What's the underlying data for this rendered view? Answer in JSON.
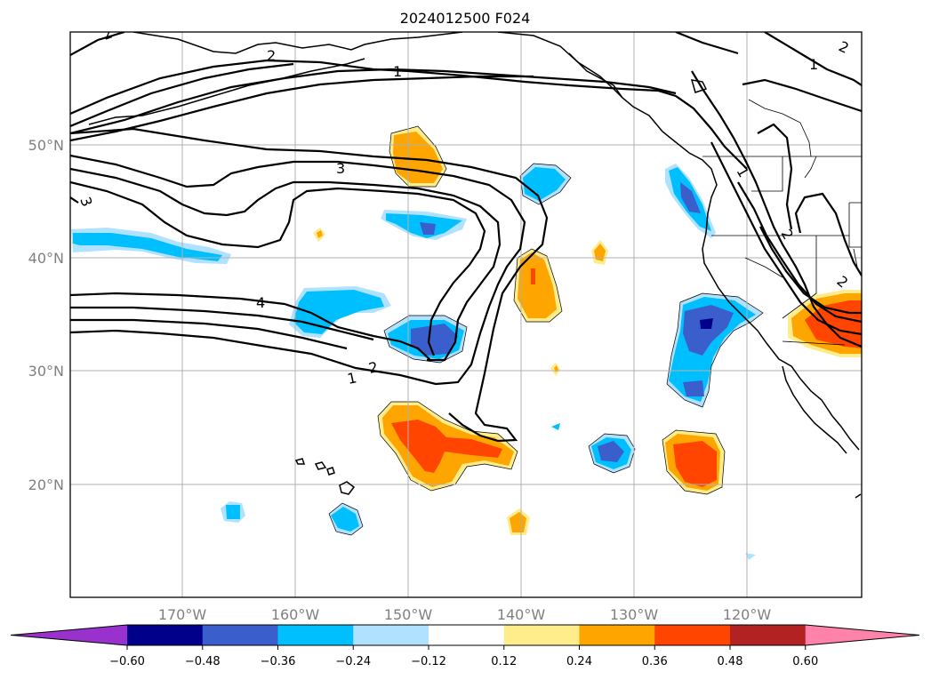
{
  "title": "2024012500 F024",
  "map": {
    "longitude_labels": [
      "170°W",
      "160°W",
      "150°W",
      "140°W",
      "130°W",
      "120°W"
    ],
    "latitude_labels": [
      "50°N",
      "40°N",
      "30°N",
      "20°N"
    ],
    "contour_labels": [
      "2",
      "2",
      "1",
      "1",
      "3",
      "4",
      "2",
      "1",
      "1",
      "2",
      "3",
      "2",
      "2"
    ],
    "gridlines": true,
    "coastlines": true
  },
  "colorbar": {
    "tick_labels": [
      "−0.60",
      "−0.48",
      "−0.36",
      "−0.24",
      "−0.12",
      "0.12",
      "0.24",
      "0.36",
      "0.48",
      "0.60"
    ],
    "colors": [
      "#9932cc",
      "#00008b",
      "#3a5fcd",
      "#00bfff",
      "#b0e2ff",
      "#ffffff",
      "#ffec8b",
      "#ffa500",
      "#ff4500",
      "#b22222",
      "#ff82ab"
    ],
    "extend": "both"
  }
}
